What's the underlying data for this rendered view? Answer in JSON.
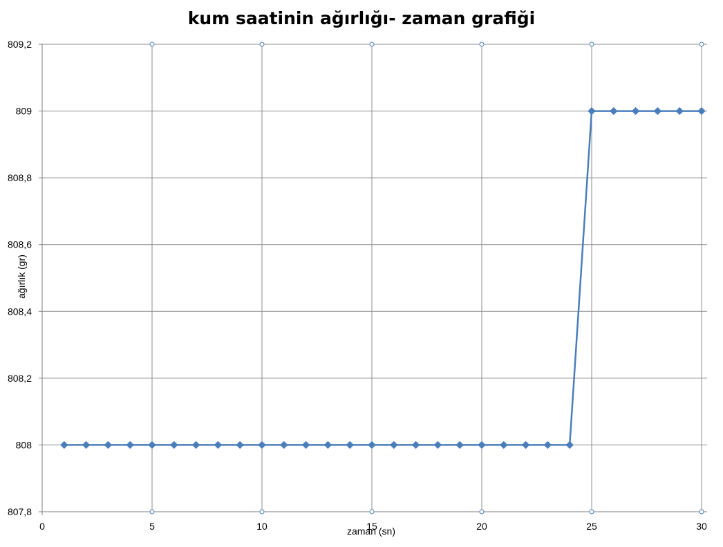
{
  "chart_data": {
    "type": "line",
    "title": "kum saatinin ağırlığı- zaman grafiği",
    "xlabel": "zaman (sn)",
    "ylabel": "ağırlık (gr)",
    "xlim": [
      0,
      30
    ],
    "ylim": [
      807.8,
      809.2
    ],
    "x_ticks": [
      0,
      5,
      10,
      15,
      20,
      25,
      30
    ],
    "y_ticks": [
      807.8,
      808,
      808.2,
      808.4,
      808.6,
      808.8,
      809,
      809.2
    ],
    "x_tick_labels": [
      "0",
      "5",
      "10",
      "15",
      "20",
      "25",
      "30"
    ],
    "y_tick_labels": [
      "807,8",
      "808",
      "808,2",
      "808,4",
      "808,6",
      "808,8",
      "809",
      "809,2"
    ],
    "grid": true,
    "legend": "none",
    "marker": "diamond",
    "series_color": "#4a7ebb",
    "grid_color": "#8c8c8c",
    "series": [
      {
        "x": [
          1,
          2,
          3,
          4,
          5,
          6,
          7,
          8,
          9,
          10,
          11,
          12,
          13,
          14,
          15,
          16,
          17,
          18,
          19,
          20,
          21,
          22,
          23,
          24,
          25,
          26,
          27,
          28,
          29,
          30
        ],
        "values": [
          808,
          808,
          808,
          808,
          808,
          808,
          808,
          808,
          808,
          808,
          808,
          808,
          808,
          808,
          808,
          808,
          808,
          808,
          808,
          808,
          808,
          808,
          808,
          808,
          809,
          809,
          809,
          809,
          809,
          809
        ]
      }
    ]
  }
}
